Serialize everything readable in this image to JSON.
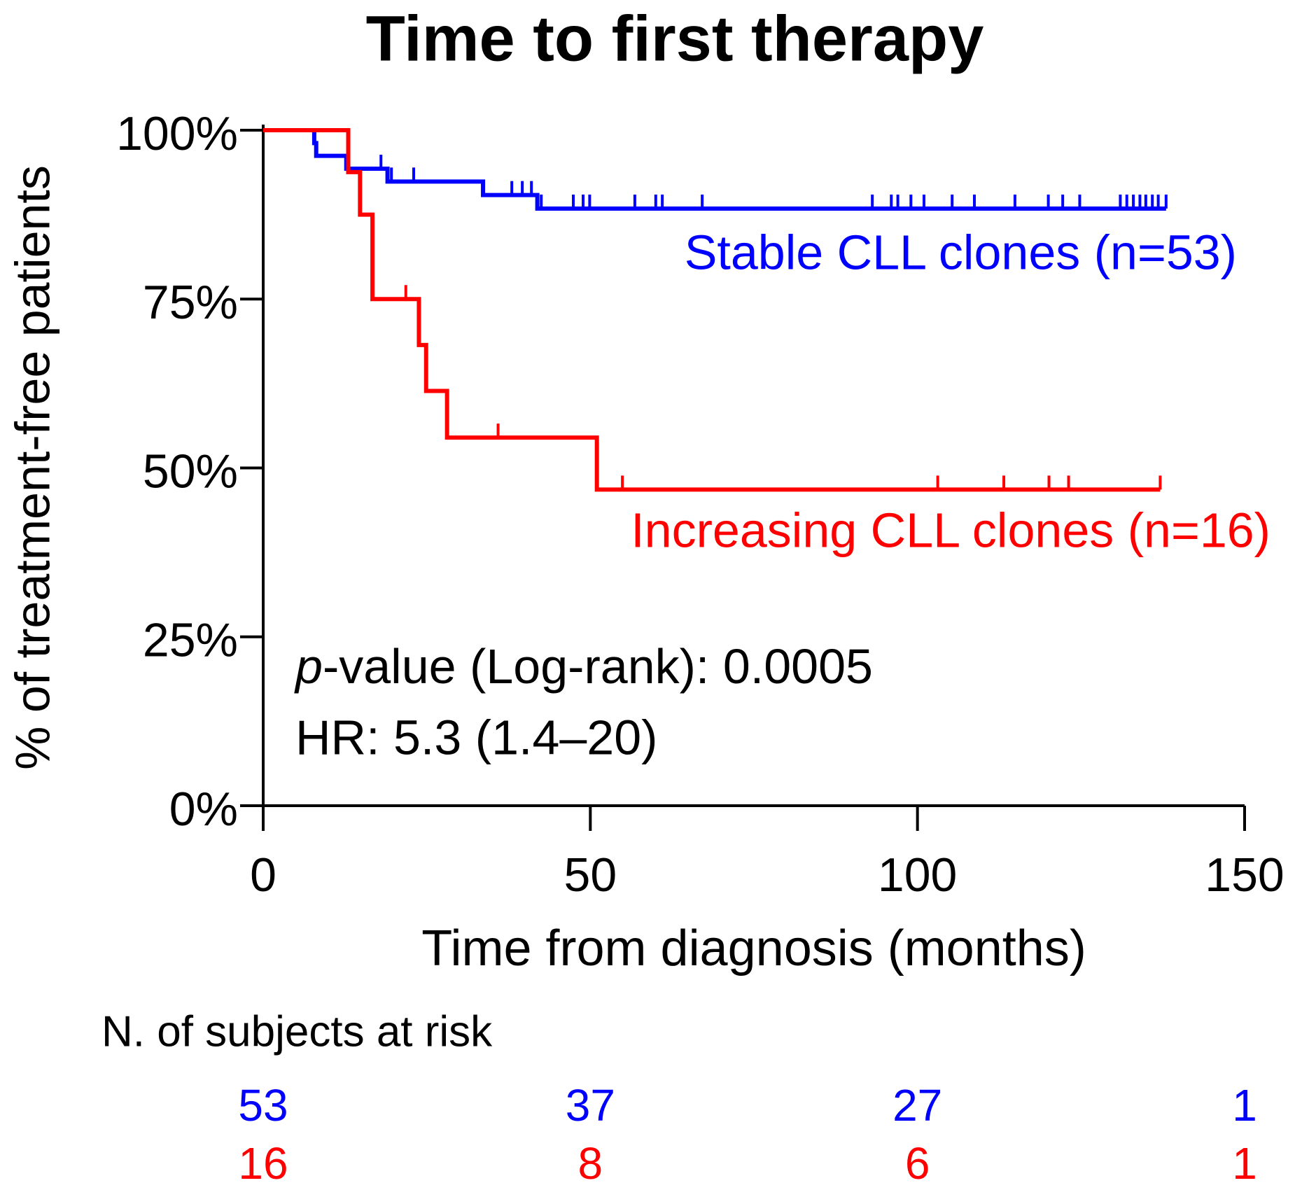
{
  "chart_data": {
    "type": "kaplan-meier",
    "title": "Time to first therapy",
    "x_label": "Time from diagnosis (months)",
    "y_label": "% of treatment-free patients",
    "xlim": [
      0,
      150
    ],
    "ylim": [
      0,
      100
    ],
    "xticks": [
      0,
      50,
      100,
      150
    ],
    "yticks": [
      {
        "value": 0,
        "label": "0%"
      },
      {
        "value": 25,
        "label": "25%"
      },
      {
        "value": 50,
        "label": "50%"
      },
      {
        "value": 75,
        "label": "75%"
      },
      {
        "value": 100,
        "label": "100%"
      }
    ],
    "series": [
      {
        "name": "Stable CLL clones (n=53)",
        "color": "#0000ff",
        "x": [
          0,
          7.8,
          8.1,
          12.7,
          19,
          33.6,
          41.9
        ],
        "values": [
          100,
          98.1,
          96.2,
          94.3,
          92.4,
          90.4,
          88.4
        ],
        "censored": [
          18,
          19.6,
          23,
          38,
          39.6,
          41,
          42.5,
          47.4,
          48.9,
          49.9,
          56.8,
          60,
          61,
          67.1,
          93.1,
          96,
          97,
          99,
          101,
          105.3,
          108.7,
          114.9,
          120,
          122.2,
          124.8,
          131,
          132,
          133,
          134,
          134.9,
          135.9,
          136.8,
          138
        ]
      },
      {
        "name": "Increasing CLL clones (n=16)",
        "color": "#ff0000",
        "x": [
          0,
          13,
          14.8,
          16.7,
          23.8,
          24.9,
          28.1,
          51
        ],
        "values": [
          100,
          93.8,
          87.5,
          75,
          68.2,
          61.4,
          54.5,
          46.8
        ],
        "censored": [
          21.8,
          35.9,
          54.9,
          103.1,
          113.2,
          120.1,
          123.1,
          137.1
        ]
      }
    ],
    "pvalue_symbol": "p",
    "pvalue_text": "-value (Log-rank): 0.0005",
    "hr_text": "HR: 5.3 (1.4–20)",
    "risk_table": {
      "title": "N. of subjects at risk",
      "rows": [
        {
          "color": "#0000ff",
          "values": [
            53,
            37,
            27,
            1
          ]
        },
        {
          "color": "#ff0000",
          "values": [
            16,
            8,
            6,
            1
          ]
        }
      ]
    }
  }
}
